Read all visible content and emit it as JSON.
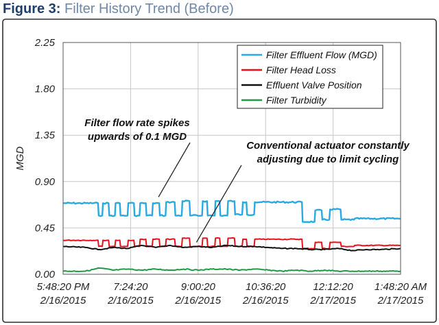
{
  "figure": {
    "label": "Figure 3:",
    "title": "Filter History Trend (Before)"
  },
  "colors": {
    "frame": "#2f2f2f",
    "grid": "#c6c6c6",
    "caption_label": "#1f3e6a",
    "caption_title": "#6f87a6"
  },
  "chart_data": {
    "type": "line",
    "title": "",
    "ylabel": "MGD",
    "xlabel": "",
    "ylim": [
      0,
      2.25
    ],
    "yticks": [
      "0.00",
      "0.45",
      "0.90",
      "1.35",
      "1.80",
      "2.25"
    ],
    "xticks": [
      {
        "time": "5:48:20 PM",
        "date": "2/16/2015"
      },
      {
        "time": "7:24:20",
        "date": "2/16/2015"
      },
      {
        "time": "9:00:20",
        "date": "2/16/2015"
      },
      {
        "time": "10:36:20",
        "date": "2/16/2015"
      },
      {
        "time": "12:12:20",
        "date": "2/17/2015"
      },
      {
        "time": "1:48:20 AM",
        "date": "2/17/2015"
      }
    ],
    "xlim": [
      "2/16/2015 5:48:20 PM",
      "2/17/2015 1:48:20 AM"
    ],
    "grid": true,
    "legend_position": "top-right",
    "series": [
      {
        "name": "Filter Effluent Flow (MGD)",
        "color": "#29a9e1",
        "x": [
          "5:48:20 PM",
          "6:38:00 PM",
          "6:39:00 PM",
          "6:44:00 PM",
          "6:45:00 PM",
          "6:53:00 PM",
          "6:54:00 PM",
          "7:02:00 PM",
          "7:03:00 PM",
          "7:09:00 PM",
          "7:10:00 PM",
          "7:20:00 PM",
          "7:21:00 PM",
          "7:29:00 PM",
          "7:30:00 PM",
          "7:37:00 PM",
          "7:38:00 PM",
          "7:46:00 PM",
          "7:47:00 PM",
          "7:55:00 PM",
          "7:56:00 PM",
          "8:05:00 PM",
          "8:06:00 PM",
          "8:14:00 PM",
          "8:15:00 PM",
          "8:27:00 PM",
          "8:28:00 PM",
          "8:37:00 PM",
          "8:38:00 PM",
          "8:48:00 PM",
          "8:49:00 PM",
          "9:06:00 PM",
          "9:07:00 PM",
          "9:13:00 PM",
          "9:14:00 PM",
          "9:24:00 PM",
          "9:25:00 PM",
          "9:31:00 PM",
          "9:32:00 PM",
          "9:42:00 PM",
          "9:43:00 PM",
          "9:52:00 PM",
          "9:53:00 PM",
          "10:03:00 PM",
          "10:04:00 PM",
          "10:09:00 PM",
          "10:10:00 PM",
          "10:20:00 PM",
          "10:21:00 PM",
          "10:30:00 PM",
          "10:31:00 PM",
          "11:28:00 PM",
          "11:29:00 PM",
          "11:46:00 PM",
          "11:47:00 PM",
          "11:56:00 PM",
          "11:57:00 PM",
          "12:07:00 AM",
          "12:08:00 AM",
          "12:23:00 AM",
          "12:24:00 AM",
          "12:42:00 AM",
          "12:43:00 AM",
          "1:48:20 AM"
        ],
        "values": [
          0.69,
          0.69,
          0.57,
          0.57,
          0.69,
          0.69,
          0.57,
          0.57,
          0.69,
          0.69,
          0.57,
          0.57,
          0.69,
          0.69,
          0.57,
          0.57,
          0.69,
          0.69,
          0.57,
          0.57,
          0.69,
          0.69,
          0.57,
          0.57,
          0.7,
          0.7,
          0.57,
          0.57,
          0.71,
          0.71,
          0.57,
          0.57,
          0.71,
          0.71,
          0.57,
          0.57,
          0.71,
          0.71,
          0.57,
          0.57,
          0.71,
          0.71,
          0.58,
          0.58,
          0.7,
          0.7,
          0.58,
          0.58,
          0.7,
          0.7,
          0.7,
          0.7,
          0.51,
          0.51,
          0.62,
          0.62,
          0.53,
          0.53,
          0.63,
          0.63,
          0.53,
          0.53,
          0.54,
          0.54
        ]
      },
      {
        "name": "Filter Head Loss",
        "color": "#e8111b",
        "x": [
          "5:48:20 PM",
          "6:38:00 PM",
          "6:39:00 PM",
          "6:44:00 PM",
          "6:45:00 PM",
          "6:53:00 PM",
          "6:54:00 PM",
          "7:02:00 PM",
          "7:03:00 PM",
          "7:09:00 PM",
          "7:10:00 PM",
          "7:20:00 PM",
          "7:21:00 PM",
          "7:29:00 PM",
          "7:30:00 PM",
          "7:37:00 PM",
          "7:38:00 PM",
          "7:46:00 PM",
          "7:47:00 PM",
          "7:55:00 PM",
          "7:56:00 PM",
          "8:05:00 PM",
          "8:06:00 PM",
          "8:14:00 PM",
          "8:15:00 PM",
          "8:27:00 PM",
          "8:28:00 PM",
          "8:37:00 PM",
          "8:38:00 PM",
          "8:48:00 PM",
          "8:49:00 PM",
          "9:06:00 PM",
          "9:07:00 PM",
          "9:13:00 PM",
          "9:14:00 PM",
          "9:24:00 PM",
          "9:25:00 PM",
          "9:31:00 PM",
          "9:32:00 PM",
          "9:42:00 PM",
          "9:43:00 PM",
          "9:52:00 PM",
          "9:53:00 PM",
          "10:03:00 PM",
          "10:04:00 PM",
          "10:09:00 PM",
          "10:10:00 PM",
          "10:20:00 PM",
          "10:21:00 PM",
          "10:30:00 PM",
          "10:31:00 PM",
          "11:28:00 PM",
          "11:29:00 PM",
          "11:46:00 PM",
          "11:47:00 PM",
          "11:56:00 PM",
          "11:57:00 PM",
          "12:07:00 AM",
          "12:08:00 AM",
          "12:23:00 AM",
          "12:24:00 AM",
          "12:42:00 AM",
          "12:43:00 AM",
          "1:48:20 AM"
        ],
        "values": [
          0.33,
          0.33,
          0.27,
          0.27,
          0.33,
          0.33,
          0.27,
          0.27,
          0.33,
          0.33,
          0.27,
          0.27,
          0.33,
          0.33,
          0.27,
          0.27,
          0.34,
          0.34,
          0.27,
          0.27,
          0.34,
          0.34,
          0.27,
          0.27,
          0.34,
          0.34,
          0.27,
          0.27,
          0.35,
          0.35,
          0.27,
          0.27,
          0.35,
          0.35,
          0.27,
          0.27,
          0.35,
          0.35,
          0.27,
          0.27,
          0.35,
          0.35,
          0.27,
          0.27,
          0.34,
          0.34,
          0.27,
          0.27,
          0.34,
          0.34,
          0.34,
          0.34,
          0.25,
          0.25,
          0.31,
          0.31,
          0.25,
          0.25,
          0.31,
          0.31,
          0.27,
          0.27,
          0.28,
          0.28
        ]
      },
      {
        "name": "Effluent Valve Position",
        "color": "#111111",
        "x": [
          "5:48:20 PM",
          "6:20:00 PM",
          "6:40:00 PM",
          "7:00:00 PM",
          "7:20:00 PM",
          "7:40:00 PM",
          "8:00:00 PM",
          "8:20:00 PM",
          "8:40:00 PM",
          "9:00:00 PM",
          "9:20:00 PM",
          "9:40:00 PM",
          "10:00:00 PM",
          "10:20:00 PM",
          "10:40:00 PM",
          "11:00:00 PM",
          "11:20:00 PM",
          "11:40:00 PM",
          "12:00:00 AM",
          "12:20:00 AM",
          "12:40:00 AM",
          "1:00:00 AM",
          "1:20:00 AM",
          "1:48:20 AM"
        ],
        "values": [
          0.27,
          0.26,
          0.24,
          0.26,
          0.25,
          0.28,
          0.26,
          0.28,
          0.26,
          0.27,
          0.26,
          0.28,
          0.27,
          0.27,
          0.26,
          0.25,
          0.25,
          0.24,
          0.24,
          0.25,
          0.23,
          0.24,
          0.24,
          0.25
        ]
      },
      {
        "name": "Filter Turbidity",
        "color": "#1f9a46",
        "x": [
          "5:48:20 PM",
          "6:20:00 PM",
          "6:40:00 PM",
          "7:00:00 PM",
          "7:20:00 PM",
          "7:40:00 PM",
          "8:00:00 PM",
          "8:20:00 PM",
          "8:40:00 PM",
          "9:00:00 PM",
          "9:20:00 PM",
          "9:40:00 PM",
          "10:00:00 PM",
          "10:20:00 PM",
          "10:40:00 PM",
          "11:00:00 PM",
          "11:20:00 PM",
          "11:40:00 PM",
          "12:00:00 AM",
          "12:20:00 AM",
          "12:40:00 AM",
          "1:00:00 AM",
          "1:20:00 AM",
          "1:48:20 AM"
        ],
        "values": [
          0.03,
          0.03,
          0.06,
          0.04,
          0.05,
          0.04,
          0.05,
          0.04,
          0.05,
          0.04,
          0.05,
          0.05,
          0.04,
          0.05,
          0.04,
          0.03,
          0.04,
          0.03,
          0.04,
          0.03,
          0.03,
          0.03,
          0.03,
          0.03
        ]
      }
    ],
    "annotations": [
      {
        "lines": [
          "Filter flow rate spikes",
          "upwards of 0.1 MGD"
        ],
        "target": [
          "8:04:00 PM",
          0.75
        ]
      },
      {
        "lines": [
          "Conventional actuator constantly",
          "adjusting due to limit cycling"
        ],
        "target": [
          "8:58:00 PM",
          0.31
        ]
      }
    ]
  }
}
